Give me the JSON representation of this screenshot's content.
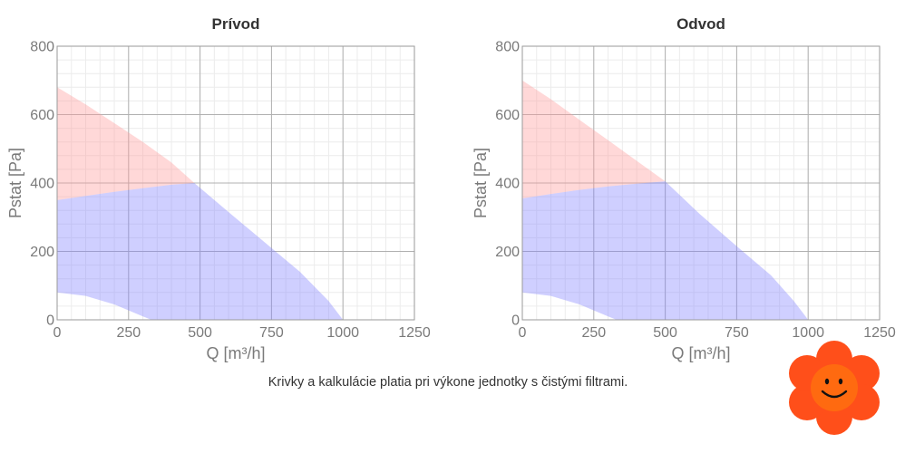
{
  "colors": {
    "red_fill": "#ff9999",
    "blue_fill": "#8080ff",
    "axis_text": "#7a7a7a",
    "title_text": "#333333",
    "grid_major": "#b0b0b0",
    "grid_minor": "#ececec",
    "mascot_orange": "#ff4f1a",
    "mascot_face": "#ff6a10"
  },
  "chart_data": [
    {
      "type": "area",
      "title": "Prívod",
      "xlabel": "Q [m³/h]",
      "ylabel": "Pstat [Pa]",
      "xlim": [
        0,
        1250
      ],
      "ylim": [
        0,
        800
      ],
      "xticks": [
        0,
        250,
        500,
        750,
        1000,
        1250
      ],
      "yticks": [
        0,
        200,
        400,
        600,
        800
      ],
      "grid": true,
      "series": [
        {
          "color": "#ff9999",
          "upper": {
            "x": [
              0,
              100,
              200,
              300,
              400,
              480
            ],
            "y": [
              680,
              630,
              575,
              520,
              460,
              400
            ]
          },
          "lower": {
            "x": [
              0,
              100,
              200,
              300,
              400,
              480
            ],
            "y": [
              350,
              362,
              374,
              385,
              395,
              400
            ]
          }
        },
        {
          "color": "#8080ff",
          "upper": {
            "x": [
              0,
              100,
              200,
              300,
              400,
              480,
              600,
              750,
              850,
              950,
              1000
            ],
            "y": [
              350,
              362,
              374,
              385,
              395,
              400,
              315,
              210,
              140,
              55,
              0
            ]
          },
          "lower": {
            "x": [
              0,
              100,
              200,
              300,
              330,
              1000
            ],
            "y": [
              80,
              70,
              45,
              10,
              0,
              0
            ]
          }
        }
      ]
    },
    {
      "type": "area",
      "title": "Odvod",
      "xlabel": "Q [m³/h]",
      "ylabel": "Pstat [Pa]",
      "xlim": [
        0,
        1250
      ],
      "ylim": [
        0,
        800
      ],
      "xticks": [
        0,
        250,
        500,
        750,
        1000,
        1250
      ],
      "yticks": [
        0,
        200,
        400,
        600,
        800
      ],
      "grid": true,
      "series": [
        {
          "color": "#ff9999",
          "upper": {
            "x": [
              0,
              100,
              200,
              300,
              400,
              500
            ],
            "y": [
              700,
              645,
              585,
              525,
              465,
              405
            ]
          },
          "lower": {
            "x": [
              0,
              100,
              200,
              300,
              400,
              500
            ],
            "y": [
              355,
              368,
              380,
              390,
              398,
              405
            ]
          }
        },
        {
          "color": "#8080ff",
          "upper": {
            "x": [
              0,
              100,
              200,
              300,
              400,
              500,
              620,
              750,
              870,
              950,
              1000
            ],
            "y": [
              355,
              368,
              380,
              390,
              398,
              405,
              310,
              215,
              130,
              55,
              0
            ]
          },
          "lower": {
            "x": [
              0,
              100,
              200,
              300,
              330,
              1000
            ],
            "y": [
              80,
              70,
              45,
              10,
              0,
              0
            ]
          }
        }
      ]
    }
  ],
  "footnote": "Krivky a kalkulácie platia pri výkone jednotky s čistými filtrami."
}
